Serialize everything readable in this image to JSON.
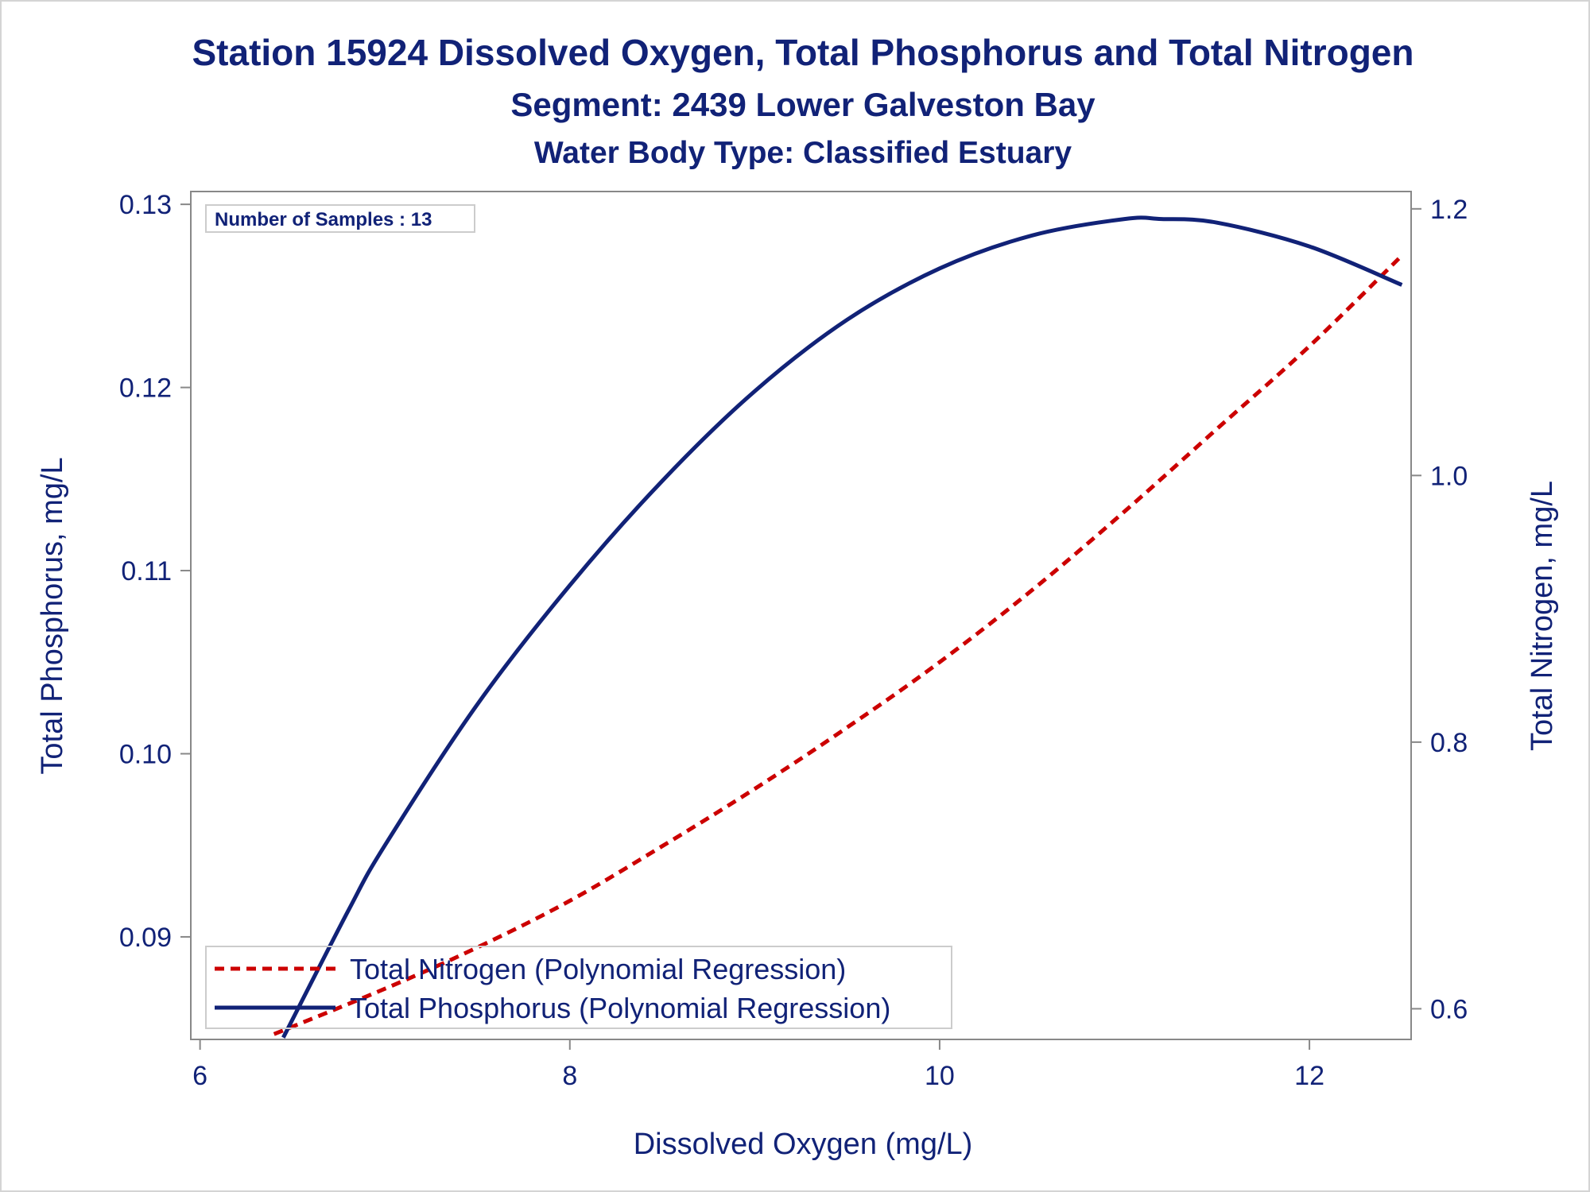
{
  "chart_data": {
    "type": "line",
    "title": "Station 15924  Dissolved Oxygen, Total Phosphorus and Total Nitrogen",
    "subtitle": "Segment: 2439  Lower Galveston Bay",
    "subtitle2": "Water Body Type: Classified Estuary",
    "annotation": "Number of Samples : 13",
    "xlabel": "Dissolved Oxygen (mg/L)",
    "ylabel": "Total Phosphorus, mg/L",
    "y2label": "Total Nitrogen, mg/L",
    "xlim": [
      5.95,
      12.55
    ],
    "ylim": [
      0.0844,
      0.1307
    ],
    "y2lim": [
      0.577,
      1.213
    ],
    "xticks": [
      6,
      8,
      10,
      12
    ],
    "xtick_labels": [
      "6",
      "8",
      "10",
      "12"
    ],
    "yticks": [
      0.09,
      0.1,
      0.11,
      0.12,
      0.13
    ],
    "ytick_labels": [
      "0.09",
      "0.10",
      "0.11",
      "0.12",
      "0.13"
    ],
    "y2ticks": [
      0.6,
      0.8,
      1.0,
      1.2
    ],
    "y2tick_labels": [
      "0.6",
      "0.8",
      "1.0",
      "1.2"
    ],
    "grid": false,
    "legend_position": "bottom-left",
    "series": [
      {
        "name": "Total Nitrogen (Polynomial Regression)",
        "axis": "right",
        "style": "dashed",
        "color": "#cc0000",
        "x": [
          6.4,
          7.0,
          7.5,
          8.0,
          8.5,
          9.0,
          9.5,
          10.0,
          10.5,
          11.0,
          11.5,
          12.0,
          12.5
        ],
        "y": [
          0.581,
          0.615,
          0.646,
          0.681,
          0.722,
          0.765,
          0.811,
          0.86,
          0.914,
          0.973,
          1.035,
          1.097,
          1.165
        ]
      },
      {
        "name": "Total Phosphorus (Polynomial Regression)",
        "axis": "left",
        "style": "solid",
        "color": "#112277",
        "x": [
          6.45,
          6.8,
          7.0,
          7.5,
          8.0,
          8.5,
          9.0,
          9.5,
          10.0,
          10.5,
          11.0,
          11.2,
          11.5,
          12.0,
          12.5
        ],
        "y": [
          0.0845,
          0.0914,
          0.095,
          0.1027,
          0.1092,
          0.1149,
          0.1198,
          0.1237,
          0.1265,
          0.1283,
          0.1292,
          0.1292,
          0.129,
          0.1277,
          0.1256
        ]
      }
    ]
  },
  "colors": {
    "title": "#112277",
    "axis": "#888888",
    "nitrogen": "#cc0000",
    "phosphorus": "#112277"
  }
}
